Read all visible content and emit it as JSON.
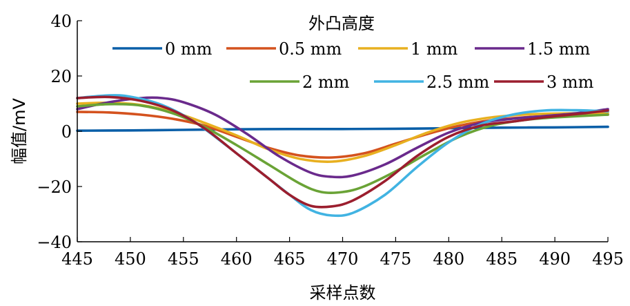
{
  "chart_data": {
    "type": "line",
    "title": "",
    "xlabel": "采样点数",
    "ylabel": "幅值/mV",
    "xlim": [
      445,
      495
    ],
    "ylim": [
      -40,
      40
    ],
    "xticks": [
      445,
      450,
      455,
      460,
      465,
      470,
      475,
      480,
      485,
      490,
      495
    ],
    "yticks": [
      -40,
      -20,
      0,
      20,
      40
    ],
    "xtick_labels": [
      "445",
      "450",
      "455",
      "460",
      "465",
      "470",
      "475",
      "480",
      "485",
      "490",
      "495"
    ],
    "ytick_labels": [
      "−40",
      "−20",
      "0",
      "20",
      "40"
    ],
    "grid": false,
    "legend": {
      "title": "外凸高度",
      "placement": "top",
      "entries": [
        "0 mm",
        "0.5 mm",
        "1 mm",
        "1.5 mm",
        "2 mm",
        "2.5 mm",
        "3 mm"
      ]
    },
    "series": [
      {
        "name": "0 mm",
        "color": "#0a5fa8",
        "points": [
          [
            445,
            0.2
          ],
          [
            450,
            0.3
          ],
          [
            455,
            0.5
          ],
          [
            460,
            0.7
          ],
          [
            465,
            0.8
          ],
          [
            470,
            0.8
          ],
          [
            475,
            0.9
          ],
          [
            480,
            1.1
          ],
          [
            485,
            1.3
          ],
          [
            490,
            1.4
          ],
          [
            495,
            1.6
          ]
        ]
      },
      {
        "name": "0.5 mm",
        "color": "#d4521e",
        "points": [
          [
            445,
            7
          ],
          [
            448,
            6.8
          ],
          [
            451,
            6.0
          ],
          [
            454,
            4.5
          ],
          [
            457,
            2.0
          ],
          [
            460,
            -2
          ],
          [
            463,
            -6
          ],
          [
            466,
            -8.8
          ],
          [
            469,
            -9.5
          ],
          [
            472,
            -8
          ],
          [
            475,
            -4.5
          ],
          [
            478,
            -1
          ],
          [
            481,
            2
          ],
          [
            484,
            4
          ],
          [
            487,
            5
          ],
          [
            490,
            5.5
          ],
          [
            495,
            6
          ]
        ]
      },
      {
        "name": "1 mm",
        "color": "#e8b020",
        "points": [
          [
            445,
            10
          ],
          [
            448,
            10.3
          ],
          [
            451,
            9.5
          ],
          [
            454,
            7
          ],
          [
            457,
            3
          ],
          [
            460,
            -1.5
          ],
          [
            463,
            -6.5
          ],
          [
            466,
            -10
          ],
          [
            469,
            -11
          ],
          [
            472,
            -9
          ],
          [
            475,
            -5
          ],
          [
            478,
            -0.5
          ],
          [
            481,
            3
          ],
          [
            484,
            5
          ],
          [
            487,
            6
          ],
          [
            490,
            6.4
          ],
          [
            495,
            6.6
          ]
        ]
      },
      {
        "name": "1.5 mm",
        "color": "#6a2a8c",
        "points": [
          [
            445,
            8
          ],
          [
            448,
            10.5
          ],
          [
            451,
            12
          ],
          [
            453,
            12
          ],
          [
            455,
            10.5
          ],
          [
            458,
            6
          ],
          [
            461,
            -1
          ],
          [
            464,
            -9
          ],
          [
            467,
            -15
          ],
          [
            469,
            -16.5
          ],
          [
            471,
            -16
          ],
          [
            474,
            -12
          ],
          [
            477,
            -6
          ],
          [
            480,
            -0.5
          ],
          [
            483,
            3
          ],
          [
            486,
            4.5
          ],
          [
            489,
            5.5
          ],
          [
            492,
            6.5
          ],
          [
            495,
            8
          ]
        ]
      },
      {
        "name": "2 mm",
        "color": "#6aa336",
        "points": [
          [
            445,
            9
          ],
          [
            448,
            9.8
          ],
          [
            451,
            9.3
          ],
          [
            454,
            6.5
          ],
          [
            457,
            1.5
          ],
          [
            460,
            -5
          ],
          [
            463,
            -12
          ],
          [
            466,
            -19
          ],
          [
            468,
            -22
          ],
          [
            470,
            -22
          ],
          [
            472,
            -20
          ],
          [
            475,
            -14.5
          ],
          [
            478,
            -8
          ],
          [
            481,
            -2
          ],
          [
            484,
            2
          ],
          [
            487,
            4
          ],
          [
            490,
            5
          ],
          [
            495,
            6
          ]
        ]
      },
      {
        "name": "2.5 mm",
        "color": "#41b3e2",
        "points": [
          [
            445,
            12
          ],
          [
            448,
            13
          ],
          [
            450,
            12.5
          ],
          [
            453,
            9.5
          ],
          [
            456,
            3.5
          ],
          [
            459,
            -5
          ],
          [
            462,
            -14
          ],
          [
            465,
            -23
          ],
          [
            467,
            -28.5
          ],
          [
            469,
            -30.5
          ],
          [
            471,
            -29.5
          ],
          [
            474,
            -23
          ],
          [
            477,
            -13
          ],
          [
            480,
            -4
          ],
          [
            483,
            2.5
          ],
          [
            486,
            6
          ],
          [
            489,
            7.5
          ],
          [
            492,
            7.6
          ],
          [
            495,
            7.2
          ]
        ]
      },
      {
        "name": "3 mm",
        "color": "#9b1e2e",
        "points": [
          [
            445,
            12
          ],
          [
            448,
            12.4
          ],
          [
            451,
            11
          ],
          [
            454,
            7.5
          ],
          [
            457,
            1
          ],
          [
            460,
            -8
          ],
          [
            463,
            -17
          ],
          [
            465,
            -23
          ],
          [
            467,
            -27
          ],
          [
            469,
            -27.2
          ],
          [
            471,
            -25
          ],
          [
            474,
            -18
          ],
          [
            477,
            -9
          ],
          [
            480,
            -2
          ],
          [
            483,
            2
          ],
          [
            486,
            3.5
          ],
          [
            489,
            5
          ],
          [
            492,
            6.2
          ],
          [
            495,
            7.5
          ]
        ]
      }
    ]
  }
}
